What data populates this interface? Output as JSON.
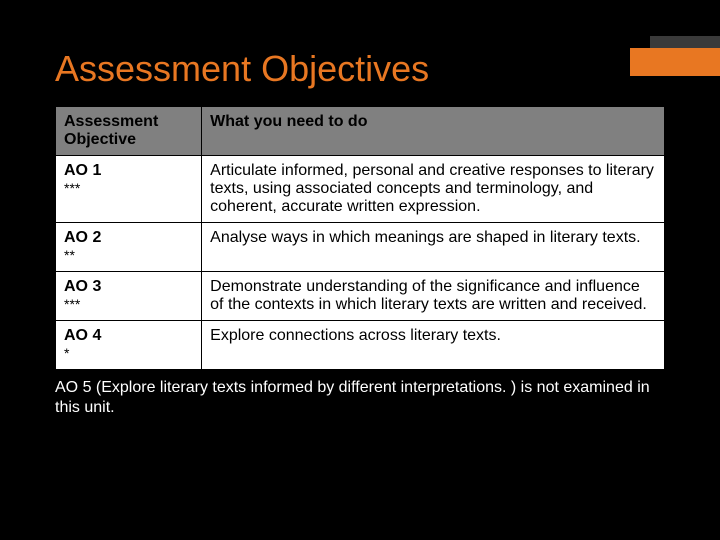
{
  "title": "Assessment Objectives",
  "accent_color": "#e87722",
  "background_color": "#000000",
  "table": {
    "header_bg": "#808080",
    "columns": [
      {
        "label": "Assessment Objective",
        "width": "24%"
      },
      {
        "label": "What you need to do",
        "width": "76%"
      }
    ],
    "rows": [
      {
        "code": "AO 1",
        "stars": "***",
        "desc": "Articulate informed, personal and creative responses to literary texts, using associated concepts and terminology, and coherent, accurate written expression."
      },
      {
        "code": "AO 2",
        "stars": "**",
        "desc": "Analyse ways in which meanings are shaped in literary texts."
      },
      {
        "code": "AO 3",
        "stars": "***",
        "desc": "Demonstrate understanding of the significance and influence of the contexts in which literary texts are written and received."
      },
      {
        "code": "AO 4",
        "stars": "*",
        "desc": "Explore connections across literary texts."
      }
    ]
  },
  "footnote": "AO 5 (Explore literary texts informed by different interpretations. ) is not examined in this unit."
}
